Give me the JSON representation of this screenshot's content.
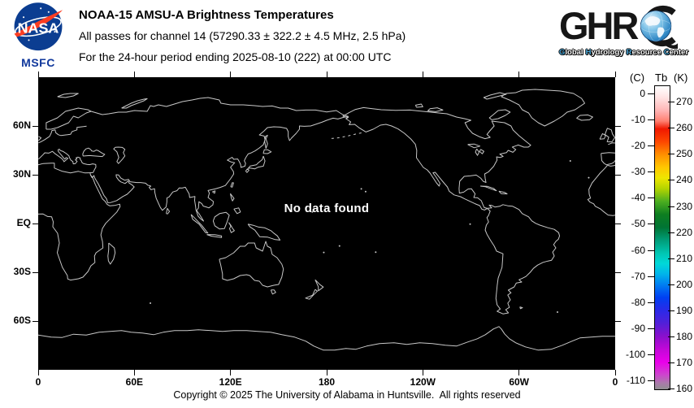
{
  "header": {
    "nasa_wordmark": "NASA",
    "nasa_center_label": "MSFC",
    "title": "NOAA-15 AMSU-A Brightness Temperatures",
    "subtitle_channel": "All passes for channel 14 (57290.33 ± 322.2 ± 4.5 MHz, 2.5 hPa)",
    "subtitle_period": "For the 24-hour period ending 2025-08-10 (222) at 00:00 UTC",
    "ghrc_wordmark": "GHR",
    "ghrc_tagline_words": [
      "Global",
      "Hydrology",
      "Resource",
      "Center"
    ],
    "ghrc_tagline_cap_color": "#4aa8d9"
  },
  "map": {
    "message": "No data found",
    "background_color": "#000000",
    "coastline_color": "#c8c8c8",
    "lat_ticks": [
      {
        "label": "60N",
        "lat": 60
      },
      {
        "label": "30N",
        "lat": 30
      },
      {
        "label": "EQ",
        "lat": 0
      },
      {
        "label": "30S",
        "lat": -30
      },
      {
        "label": "60S",
        "lat": -60
      }
    ],
    "lon_ticks": [
      {
        "label": "0",
        "lon": 0
      },
      {
        "label": "60E",
        "lon": 60
      },
      {
        "label": "120E",
        "lon": 120
      },
      {
        "label": "180",
        "lon": 180
      },
      {
        "label": "120W",
        "lon": 240
      },
      {
        "label": "60W",
        "lon": 300
      },
      {
        "label": "0",
        "lon": 360
      }
    ]
  },
  "colorbar": {
    "unit_celsius": "(C)",
    "quantity": "Tb",
    "unit_kelvin": "(K)",
    "kelvin_tick_labels": [
      270,
      260,
      250,
      240,
      230,
      220,
      210,
      200,
      190,
      180,
      170,
      160
    ],
    "celsius_tick_labels": [
      0,
      -10,
      -20,
      -30,
      -40,
      -50,
      -60,
      -70,
      -80,
      -90,
      -100,
      -110
    ],
    "scale_kelvin_min": 159.5,
    "scale_kelvin_max": 276.5,
    "celsius_to_kelvin_offset": 273.15,
    "gradient_stops": [
      {
        "kelvin": 276.5,
        "color": "#ffffff"
      },
      {
        "kelvin": 272,
        "color": "#ffe2e2"
      },
      {
        "kelvin": 267,
        "color": "#ffb4b4"
      },
      {
        "kelvin": 263,
        "color": "#ff8072"
      },
      {
        "kelvin": 260,
        "color": "#f01800"
      },
      {
        "kelvin": 255,
        "color": "#fe4800"
      },
      {
        "kelvin": 250,
        "color": "#ff9000"
      },
      {
        "kelvin": 245,
        "color": "#ffc800"
      },
      {
        "kelvin": 241,
        "color": "#eee600"
      },
      {
        "kelvin": 237,
        "color": "#b4d400"
      },
      {
        "kelvin": 232,
        "color": "#4cae20"
      },
      {
        "kelvin": 227,
        "color": "#0e7e20"
      },
      {
        "kelvin": 222,
        "color": "#007434"
      },
      {
        "kelvin": 217,
        "color": "#009e7a"
      },
      {
        "kelvin": 212,
        "color": "#00c6b2"
      },
      {
        "kelvin": 208,
        "color": "#00d8d8"
      },
      {
        "kelvin": 204,
        "color": "#00b4ea"
      },
      {
        "kelvin": 200,
        "color": "#0080f2"
      },
      {
        "kelvin": 195,
        "color": "#0040f2"
      },
      {
        "kelvin": 190,
        "color": "#2a2ae8"
      },
      {
        "kelvin": 185,
        "color": "#5220d8"
      },
      {
        "kelvin": 180,
        "color": "#8a10cc"
      },
      {
        "kelvin": 175,
        "color": "#c208d8"
      },
      {
        "kelvin": 170,
        "color": "#ea00ea"
      },
      {
        "kelvin": 165,
        "color": "#cc46cc"
      },
      {
        "kelvin": 162,
        "color": "#ab79ab"
      },
      {
        "kelvin": 159.5,
        "color": "#909090"
      }
    ]
  },
  "footer": {
    "copyright": "Copyright © 2025 The University of Alabama in Huntsville.  All rights reserved"
  }
}
